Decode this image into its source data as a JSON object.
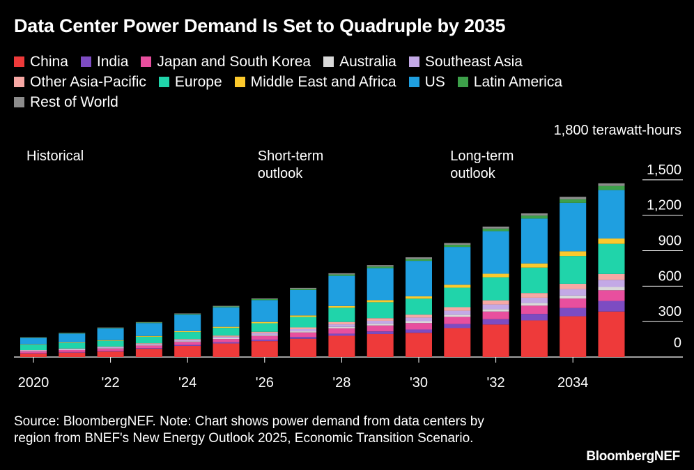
{
  "title": "Data Center Power Demand Is Set to Quadruple by 2035",
  "legend": [
    {
      "name": "China",
      "color": "#ee3a3a"
    },
    {
      "name": "India",
      "color": "#7d4cc2"
    },
    {
      "name": "Japan and South Korea",
      "color": "#e84f9e"
    },
    {
      "name": "Australia",
      "color": "#d9d9d9"
    },
    {
      "name": "Southeast Asia",
      "color": "#c3a9e6"
    },
    {
      "name": "Other Asia-Pacific",
      "color": "#f7a8a4"
    },
    {
      "name": "Europe",
      "color": "#20d4aa"
    },
    {
      "name": "Middle East and Africa",
      "color": "#fcc92c"
    },
    {
      "name": "US",
      "color": "#1f9fe0"
    },
    {
      "name": "Latin America",
      "color": "#3da04a"
    },
    {
      "name": "Rest of World",
      "color": "#8c8c8c"
    }
  ],
  "source": "Source: BloombergNEF. Note: Chart shows power demand from data centers by region from BNEF's New Energy Outlook 2025, Economic Transition Scenario.",
  "brand": "BloombergNEF",
  "chart_data": {
    "type": "bar",
    "stacked": true,
    "unit_label": "1,800 terawatt-hours",
    "ylim": [
      0,
      1800
    ],
    "yticks": [
      0,
      300,
      600,
      900,
      1200,
      1500
    ],
    "ytick_labels": [
      "0",
      "300",
      "600",
      "900",
      "1,200",
      "1,500"
    ],
    "categories": [
      "2020",
      "2021",
      "2022",
      "2023",
      "2024",
      "2025",
      "2026",
      "2027",
      "2028",
      "2029",
      "2030",
      "2031",
      "2032",
      "2033",
      "2034",
      "2035"
    ],
    "xtick_labels": [
      "2020",
      "",
      "'22",
      "",
      "'24",
      "",
      "'26",
      "",
      "'28",
      "",
      "'30",
      "",
      "'32",
      "",
      "2034",
      ""
    ],
    "period_labels": [
      {
        "text": "Historical",
        "at": "2020"
      },
      {
        "text": "Short-term outlook",
        "at": "2026"
      },
      {
        "text": "Long-term outlook",
        "at": "2031"
      }
    ],
    "series": [
      {
        "name": "China",
        "color": "#ee3a3a",
        "values": [
          30,
          38,
          48,
          70,
          95,
          115,
          135,
          155,
          180,
          195,
          205,
          245,
          275,
          310,
          345,
          385
        ]
      },
      {
        "name": "India",
        "color": "#7d4cc2",
        "values": [
          3,
          4,
          5,
          6,
          8,
          10,
          12,
          15,
          18,
          22,
          28,
          35,
          45,
          55,
          70,
          90
        ]
      },
      {
        "name": "Japan and South Korea",
        "color": "#e84f9e",
        "values": [
          15,
          17,
          19,
          22,
          25,
          28,
          32,
          38,
          45,
          50,
          55,
          60,
          65,
          70,
          80,
          90
        ]
      },
      {
        "name": "Australia",
        "color": "#d9d9d9",
        "values": [
          3,
          3,
          4,
          5,
          6,
          7,
          8,
          10,
          12,
          14,
          16,
          18,
          20,
          22,
          25,
          28
        ]
      },
      {
        "name": "Southeast Asia",
        "color": "#c3a9e6",
        "values": [
          5,
          6,
          7,
          8,
          10,
          12,
          15,
          18,
          22,
          26,
          30,
          34,
          40,
          45,
          55,
          60
        ]
      },
      {
        "name": "Other Asia-Pacific",
        "color": "#f7a8a4",
        "values": [
          3,
          4,
          5,
          6,
          8,
          10,
          12,
          15,
          20,
          22,
          25,
          30,
          35,
          40,
          45,
          50
        ]
      },
      {
        "name": "Europe",
        "color": "#20d4aa",
        "values": [
          45,
          48,
          50,
          55,
          60,
          65,
          72,
          88,
          120,
          135,
          135,
          165,
          195,
          215,
          235,
          255
        ]
      },
      {
        "name": "Middle East and Africa",
        "color": "#fcc92c",
        "values": [
          3,
          4,
          5,
          6,
          7,
          9,
          11,
          13,
          15,
          18,
          20,
          25,
          30,
          35,
          40,
          45
        ]
      },
      {
        "name": "US",
        "color": "#1f9fe0",
        "values": [
          55,
          75,
          100,
          110,
          140,
          165,
          185,
          215,
          255,
          270,
          300,
          320,
          360,
          380,
          410,
          410
        ]
      },
      {
        "name": "Latin America",
        "color": "#3da04a",
        "values": [
          3,
          4,
          4,
          5,
          6,
          7,
          8,
          10,
          12,
          14,
          16,
          18,
          22,
          25,
          30,
          35
        ]
      },
      {
        "name": "Rest of World",
        "color": "#8c8c8c",
        "values": [
          2,
          2,
          3,
          3,
          4,
          5,
          6,
          8,
          10,
          12,
          14,
          15,
          17,
          19,
          21,
          22
        ]
      }
    ]
  }
}
